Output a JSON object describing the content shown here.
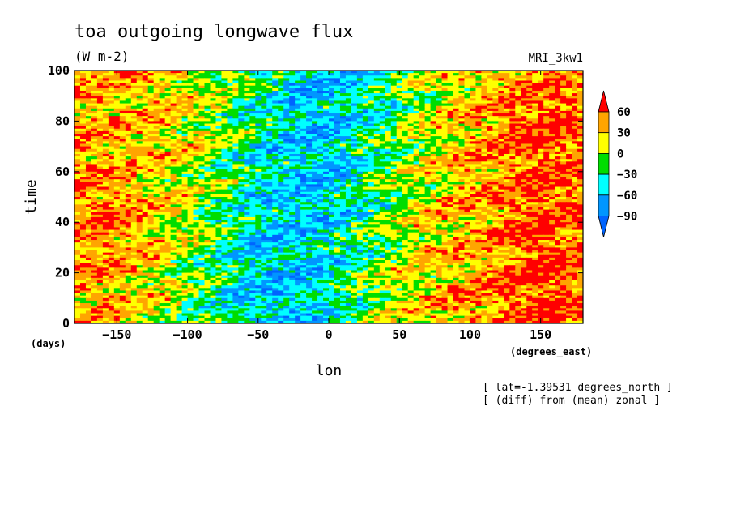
{
  "chart_data": {
    "type": "heatmap",
    "title": "toa outgoing longwave flux",
    "units": "(W m-2)",
    "model_label": "MRI_3kw1",
    "xlabel": "lon",
    "xlabel_units": "(degrees_east)",
    "ylabel": "time",
    "ylabel_units": "(days)",
    "xlim": [
      -180,
      180
    ],
    "ylim": [
      0,
      100
    ],
    "x_ticks": [
      -150,
      -100,
      -50,
      0,
      50,
      100,
      150
    ],
    "y_ticks": [
      0,
      20,
      40,
      60,
      80,
      100
    ],
    "notes": [
      "[ lat=-1.39531 degrees_north ]",
      "[ (diff) from (mean) zonal ]"
    ],
    "colorbar": {
      "levels": [
        60,
        30,
        0,
        -30,
        -60,
        -90
      ],
      "colors": [
        "#ff0000",
        "#ffa500",
        "#ffff00",
        "#00dd00",
        "#00ffff",
        "#0096ff",
        "#0064ff"
      ],
      "extend": "both"
    },
    "pattern_description_regions": [
      {
        "lon_range": [
          -60,
          40
        ],
        "time_range": [
          20,
          80
        ],
        "value_approx": -60
      },
      {
        "lon_range": [
          -180,
          -120
        ],
        "time_range": [
          25,
          55
        ],
        "value_approx": 45
      },
      {
        "lon_range": [
          100,
          180
        ],
        "time_range": [
          0,
          90
        ],
        "value_approx": 45
      }
    ]
  }
}
